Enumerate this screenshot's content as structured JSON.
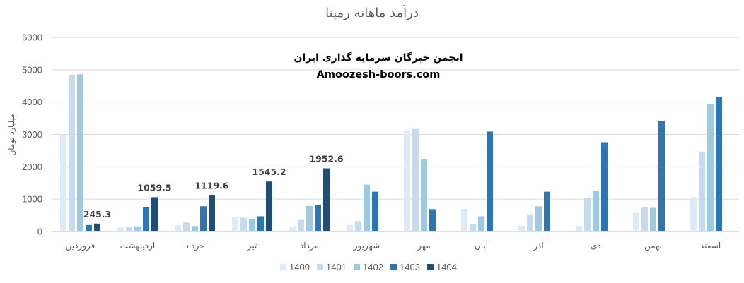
{
  "chart_data": {
    "type": "bar",
    "title": "درآمد ماهانه رمپنا",
    "ylabel": "میلیارد تومان",
    "xlabel": "",
    "ylim": [
      0,
      6000
    ],
    "yticks": [
      0,
      1000,
      2000,
      3000,
      4000,
      5000,
      6000
    ],
    "grid": true,
    "legend_position": "bottom",
    "categories": [
      "فروردین",
      "اردیبهشت",
      "خرداد",
      "تیر",
      "مرداد",
      "شهریور",
      "مهر",
      "آبان",
      "آذر",
      "دی",
      "بهمن",
      "اسفند"
    ],
    "series": [
      {
        "name": "1400",
        "color": "#deebf7",
        "values": [
          3000,
          120,
          190,
          450,
          150,
          200,
          3130,
          700,
          180,
          180,
          580,
          1060
        ]
      },
      {
        "name": "1401",
        "color": "#c6dbef",
        "values": [
          4850,
          140,
          280,
          420,
          360,
          320,
          3170,
          220,
          530,
          1040,
          750,
          2470
        ]
      },
      {
        "name": "1402",
        "color": "#9ecae1",
        "values": [
          4860,
          160,
          170,
          380,
          790,
          1450,
          2230,
          470,
          780,
          1260,
          730,
          3940
        ]
      },
      {
        "name": "1403",
        "color": "#2e75b6",
        "values": [
          200,
          750,
          780,
          470,
          820,
          1230,
          690,
          3090,
          1230,
          2760,
          3420,
          4160
        ]
      },
      {
        "name": "1404",
        "color": "#1f4e79",
        "values": [
          245.3,
          1059.5,
          1119.6,
          1545.2,
          1952.6,
          null,
          null,
          null,
          null,
          null,
          null,
          null
        ]
      }
    ],
    "data_labels": [
      {
        "category": "فروردین",
        "series": "1404",
        "value": 245.3,
        "text": "245.3"
      },
      {
        "category": "اردیبهشت",
        "series": "1404",
        "value": 1059.5,
        "text": "1059.5"
      },
      {
        "category": "خرداد",
        "series": "1404",
        "value": 1119.6,
        "text": "1119.6"
      },
      {
        "category": "تیر",
        "series": "1404",
        "value": 1545.2,
        "text": "1545.2"
      },
      {
        "category": "مرداد",
        "series": "1404",
        "value": 1952.6,
        "text": "1952.6"
      }
    ]
  },
  "watermark": {
    "line1": "انجمن خبرگان سرمایه گذاری ایران",
    "line2": "Amoozesh-boors.com"
  },
  "colors": {
    "grid": "#d9d9d9",
    "axis": "#bfbfbf",
    "text": "#595959"
  }
}
